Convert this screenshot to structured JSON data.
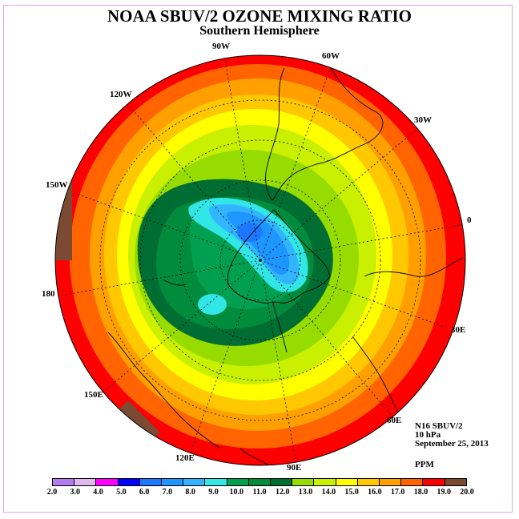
{
  "title": "NOAA SBUV/2 OZONE MIXING RATIO",
  "subtitle": "Southern Hemisphere",
  "longitude_labels": [
    "90W",
    "60W",
    "30W",
    "0",
    "30E",
    "60E",
    "90E",
    "120E",
    "150E",
    "180",
    "150W",
    "120W"
  ],
  "info": {
    "satellite": "N16 SBUV/2",
    "pressure_level": "10 hPa",
    "date": "September 25, 2013",
    "units": "PPM"
  },
  "legend": {
    "ticks": [
      "2.0",
      "3.0",
      "4.0",
      "5.0",
      "6.0",
      "7.0",
      "8.0",
      "9.0",
      "10.0",
      "11.0",
      "12.0",
      "13.0",
      "14.0",
      "15.0",
      "16.0",
      "17.0",
      "18.0",
      "19.0",
      "20.0"
    ],
    "colors": [
      "#b57bf0",
      "#e0b8f0",
      "#ff00ff",
      "#0000ff",
      "#1e78ff",
      "#1e96ff",
      "#32b4ff",
      "#32e6e6",
      "#00a050",
      "#008c3c",
      "#006e32",
      "#96dc00",
      "#c8f000",
      "#ffff00",
      "#ffc800",
      "#ffa000",
      "#ff6400",
      "#ff0000",
      "#7a4a32"
    ]
  }
}
